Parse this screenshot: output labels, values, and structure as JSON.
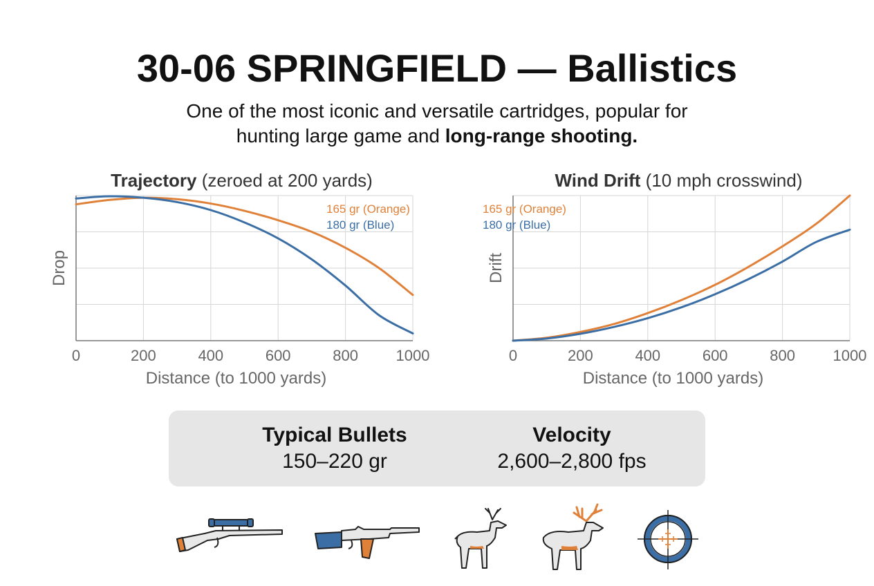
{
  "header": {
    "title": "30-06 SPRINGFIELD — Ballistics",
    "subtitle_line1": "One of the most iconic and versatile cartridges, popular for",
    "subtitle_line2_plain": "hunting large game and ",
    "subtitle_line2_bold": "long-range shooting."
  },
  "chart_data": [
    {
      "type": "line",
      "title": "Trajectory",
      "subtitle": "(zeroed at 200 yards)",
      "xlabel": "Distance (to 1000 yards)",
      "ylabel": "Drop",
      "xlim": [
        0,
        1000
      ],
      "ylim": [
        0,
        4
      ],
      "x_ticks": [
        "0",
        "200",
        "400",
        "600",
        "800",
        "1000"
      ],
      "grid": true,
      "legend": "top-right",
      "series": [
        {
          "name": "165 gr (Orange)",
          "color": "#e0813a",
          "x": [
            0,
            100,
            200,
            300,
            400,
            500,
            600,
            700,
            800,
            900,
            1000
          ],
          "y": [
            3.76,
            3.88,
            3.94,
            3.9,
            3.78,
            3.58,
            3.32,
            3.0,
            2.56,
            2.0,
            1.26
          ]
        },
        {
          "name": "180 gr (Blue)",
          "color": "#3a6ea5",
          "x": [
            0,
            100,
            200,
            300,
            400,
            500,
            600,
            700,
            800,
            900,
            1000
          ],
          "y": [
            3.92,
            3.98,
            3.94,
            3.82,
            3.6,
            3.26,
            2.82,
            2.24,
            1.52,
            0.7,
            0.2
          ]
        }
      ]
    },
    {
      "type": "line",
      "title": "Wind Drift",
      "subtitle": "(10 mph crosswind)",
      "xlabel": "Distance (to 1000 yards)",
      "ylabel": "Drift",
      "xlim": [
        0,
        1000
      ],
      "ylim": [
        0,
        4
      ],
      "x_ticks": [
        "0",
        "200",
        "400",
        "600",
        "800",
        "1000"
      ],
      "grid": true,
      "legend": "top-left",
      "series": [
        {
          "name": "165 gr (Orange)",
          "color": "#e0813a",
          "x": [
            0,
            100,
            200,
            300,
            400,
            500,
            600,
            700,
            800,
            900,
            1000
          ],
          "y": [
            0,
            0.08,
            0.24,
            0.46,
            0.76,
            1.12,
            1.54,
            2.04,
            2.6,
            3.22,
            4.0
          ]
        },
        {
          "name": "180 gr (Blue)",
          "color": "#3a6ea5",
          "x": [
            0,
            100,
            200,
            300,
            400,
            500,
            600,
            700,
            800,
            900,
            1000
          ],
          "y": [
            0,
            0.06,
            0.19,
            0.38,
            0.62,
            0.92,
            1.28,
            1.7,
            2.18,
            2.72,
            3.06
          ]
        }
      ]
    }
  ],
  "stats": {
    "bullets_label": "Typical Bullets",
    "bullets_value": "150–220 gr",
    "velocity_label": "Velocity",
    "velocity_value": "2,600–2,800 fps"
  },
  "icons": [
    "scoped-rifle-icon",
    "battle-rifle-icon",
    "deer-icon",
    "elk-icon",
    "crosshair-scope-icon"
  ],
  "colors": {
    "orange": "#e0813a",
    "blue": "#3a6ea5",
    "grid": "#d6d6d6",
    "axis": "#777777",
    "panel": "#e6e6e6"
  }
}
